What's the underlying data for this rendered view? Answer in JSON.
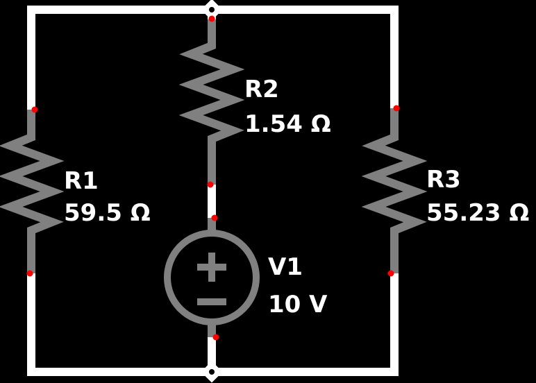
{
  "colors": {
    "background": "#000000",
    "wire": "#ffffff",
    "component": "#808080",
    "terminal_dot": "#ff0000",
    "label": "#ffffff"
  },
  "components": {
    "r1": {
      "name": "R1",
      "value": "59.5 Ω",
      "icon": "resistor-icon"
    },
    "r2": {
      "name": "R2",
      "value": "1.54 Ω",
      "icon": "resistor-icon"
    },
    "r3": {
      "name": "R3",
      "value": "55.23 Ω",
      "icon": "resistor-icon"
    },
    "v1": {
      "name": "V1",
      "value": "10 V",
      "icon": "voltage-source-icon"
    }
  },
  "nodes": {
    "top": "junction-node-icon",
    "bottom": "junction-node-icon"
  }
}
